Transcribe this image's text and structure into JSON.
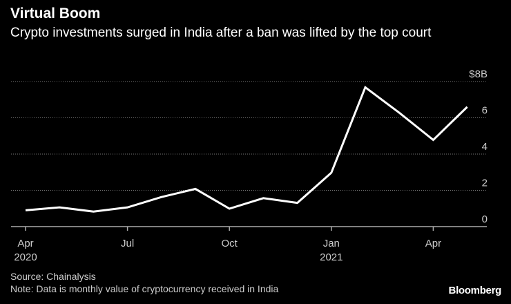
{
  "chart_data": {
    "type": "line",
    "title": "Virtual Boom",
    "subtitle": "Crypto investments surged in India after a ban was lifted by the top court",
    "x": [
      "2020-04",
      "2020-05",
      "2020-06",
      "2020-07",
      "2020-08",
      "2020-09",
      "2020-10",
      "2020-11",
      "2020-12",
      "2021-01",
      "2021-02",
      "2021-03",
      "2021-04",
      "2021-05"
    ],
    "values": [
      0.9,
      1.06,
      0.83,
      1.06,
      1.63,
      2.08,
      0.99,
      1.57,
      1.31,
      2.97,
      7.68,
      6.28,
      4.78,
      6.6
    ],
    "unit": "$B",
    "ylim": [
      0,
      8
    ],
    "yticks": [
      {
        "value": 0,
        "label": "0"
      },
      {
        "value": 2,
        "label": "2"
      },
      {
        "value": 4,
        "label": "4"
      },
      {
        "value": 6,
        "label": "6"
      },
      {
        "value": 8,
        "label": "$8B"
      }
    ],
    "xticks": [
      {
        "index": 0,
        "label": "Apr",
        "sublabel": "2020"
      },
      {
        "index": 3,
        "label": "Jul",
        "sublabel": ""
      },
      {
        "index": 6,
        "label": "Oct",
        "sublabel": ""
      },
      {
        "index": 9,
        "label": "Jan",
        "sublabel": "2021"
      },
      {
        "index": 12,
        "label": "Apr",
        "sublabel": ""
      }
    ],
    "grid": true,
    "line_color": "#ffffff",
    "background": "#000000"
  },
  "footer": {
    "source": "Source: Chainalysis",
    "note": "Note: Data is monthly value of cryptocurrency received in India",
    "logo": "Bloomberg"
  }
}
